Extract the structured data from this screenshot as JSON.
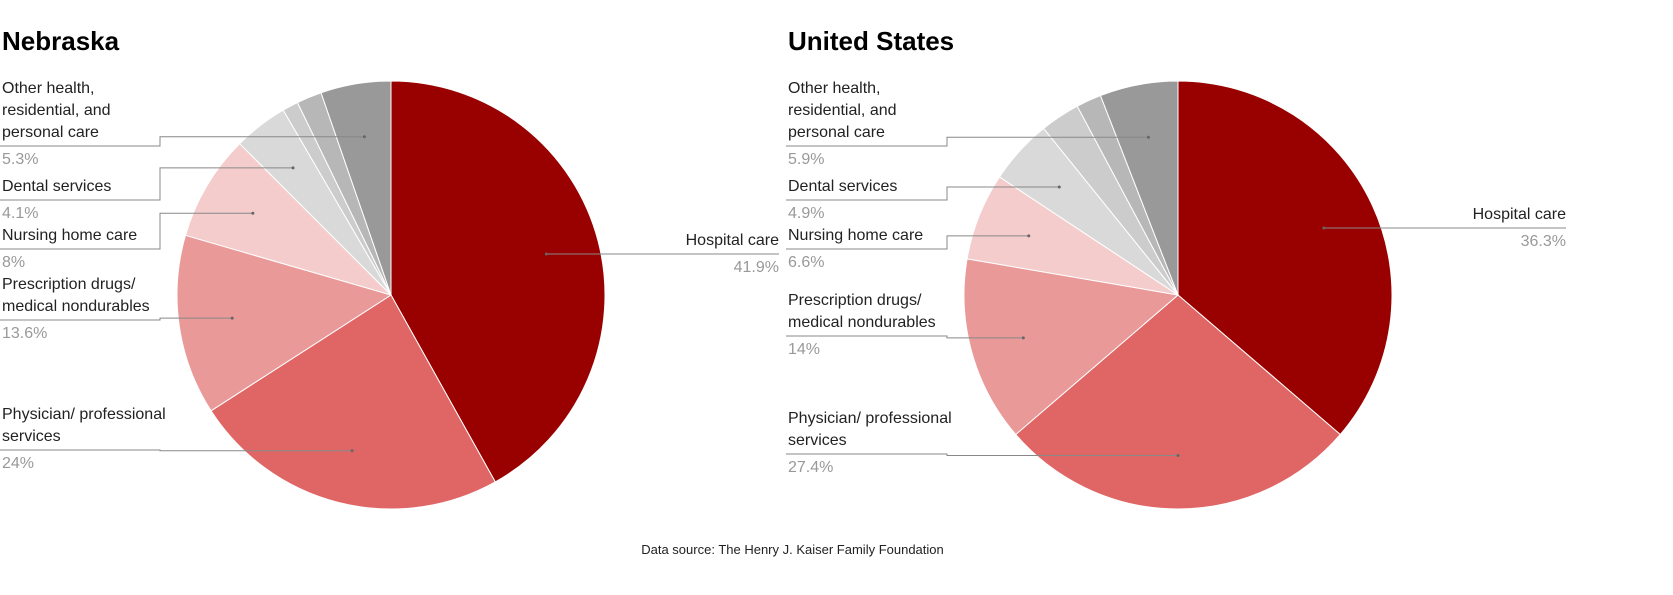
{
  "chart_data": [
    {
      "type": "pie",
      "title": "Nebraska",
      "categories": [
        "Hospital care",
        "Physician/ professional services",
        "Prescription drugs/ medical nondurables",
        "Nursing home care",
        "Dental services",
        null,
        null,
        "Other health, residential, and personal care"
      ],
      "values": [
        41.9,
        24,
        13.6,
        8,
        4.1,
        1.2,
        1.9,
        5.3
      ],
      "value_labels": [
        "41.9%",
        "24%",
        "13.6%",
        "8%",
        "4.1%",
        null,
        null,
        "5.3%"
      ],
      "colors": [
        "#990000",
        "#e06666",
        "#ea9999",
        "#f4cccc",
        "#d9d9d9",
        "#cccccc",
        "#b7b7b7",
        "#999999"
      ]
    },
    {
      "type": "pie",
      "title": "United States",
      "categories": [
        "Hospital care",
        "Physician/ professional services",
        "Prescription drugs/ medical nondurables",
        "Nursing home care",
        "Dental services",
        null,
        null,
        "Other health, residential, and personal care"
      ],
      "values": [
        36.3,
        27.4,
        14,
        6.6,
        4.9,
        3.0,
        1.9,
        5.9
      ],
      "value_labels": [
        "36.3%",
        "27.4%",
        "14%",
        "6.6%",
        "4.9%",
        null,
        null,
        "5.9%"
      ],
      "colors": [
        "#990000",
        "#e06666",
        "#ea9999",
        "#f4cccc",
        "#d9d9d9",
        "#cccccc",
        "#b7b7b7",
        "#999999"
      ]
    }
  ],
  "footer": "Data source: The Henry J. Kaiser Family Foundation"
}
